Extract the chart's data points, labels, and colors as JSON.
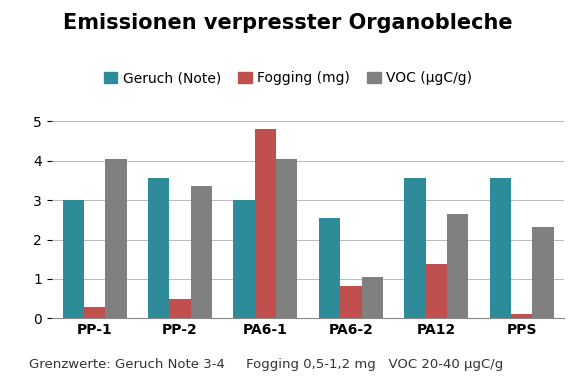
{
  "title": "Emissionen verpresster Organobleche",
  "categories": [
    "PP-1",
    "PP-2",
    "PA6-1",
    "PA6-2",
    "PA12",
    "PPS"
  ],
  "series": {
    "Geruch (Note)": [
      3.0,
      3.55,
      3.0,
      2.55,
      3.55,
      3.55
    ],
    "Fogging (mg)": [
      0.3,
      0.48,
      4.8,
      0.82,
      1.38,
      0.12
    ],
    "VOC (μgC/g)": [
      4.05,
      3.35,
      4.05,
      1.05,
      2.65,
      2.32
    ]
  },
  "colors": {
    "Geruch (Note)": "#2E8B9A",
    "Fogging (mg)": "#C0504D",
    "VOC (μgC/g)": "#808080"
  },
  "ylim": [
    0,
    5
  ],
  "yticks": [
    0,
    1,
    2,
    3,
    4,
    5
  ],
  "footer": "Grenzwerte: Geruch Note 3-4     Fogging 0,5-1,2 mg   VOC 20-40 μgC/g",
  "background_color": "#FFFFFF",
  "title_fontsize": 15,
  "legend_fontsize": 10,
  "tick_fontsize": 10,
  "footer_fontsize": 9.5,
  "bar_width": 0.25
}
